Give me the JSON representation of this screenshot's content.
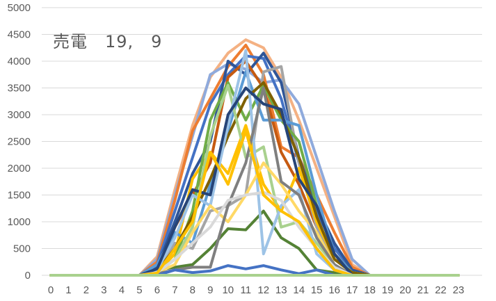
{
  "chart_data": {
    "type": "line",
    "title": "売電　19,　9",
    "xlabel": "",
    "ylabel": "",
    "x": [
      0,
      1,
      2,
      3,
      4,
      5,
      6,
      7,
      8,
      9,
      10,
      11,
      12,
      13,
      14,
      15,
      16,
      17,
      18,
      19,
      20,
      21,
      22,
      23
    ],
    "x_tick_labels": [
      "0",
      "1",
      "2",
      "3",
      "4",
      "5",
      "6",
      "7",
      "8",
      "9",
      "10",
      "11",
      "12",
      "13",
      "14",
      "15",
      "16",
      "17",
      "18",
      "19",
      "20",
      "21",
      "22",
      "23"
    ],
    "ylim": [
      0,
      5000
    ],
    "y_ticks": [
      0,
      500,
      1000,
      1500,
      2000,
      2500,
      3000,
      3500,
      4000,
      4500,
      5000
    ],
    "y_tick_labels": [
      "0",
      "500",
      "1000",
      "1500",
      "2000",
      "2500",
      "3000",
      "3500",
      "4000",
      "4500",
      "5000"
    ],
    "grid": true,
    "legend": "none",
    "series": [
      {
        "color": "#f4b183",
        "values": [
          0,
          0,
          0,
          0,
          0,
          0,
          350,
          1600,
          2800,
          3700,
          4150,
          4400,
          4250,
          3700,
          2900,
          2000,
          1100,
          200,
          0,
          0,
          0,
          0,
          0,
          0
        ]
      },
      {
        "color": "#8faadc",
        "values": [
          0,
          0,
          0,
          0,
          0,
          0,
          300,
          1500,
          2600,
          3750,
          3950,
          3850,
          3600,
          3650,
          3200,
          2200,
          1200,
          300,
          0,
          0,
          0,
          0,
          0,
          0
        ]
      },
      {
        "color": "#ed7d31",
        "values": [
          0,
          0,
          0,
          0,
          0,
          0,
          250,
          1400,
          2700,
          3300,
          3900,
          4300,
          3750,
          2400,
          2200,
          1500,
          800,
          150,
          0,
          0,
          0,
          0,
          0,
          0
        ]
      },
      {
        "color": "#4472c4",
        "values": [
          0,
          0,
          0,
          0,
          0,
          0,
          200,
          1200,
          2200,
          3200,
          3750,
          4100,
          4050,
          3300,
          2100,
          1200,
          500,
          100,
          0,
          0,
          0,
          0,
          0,
          0
        ]
      },
      {
        "color": "#2f5597",
        "values": [
          0,
          0,
          0,
          0,
          0,
          0,
          150,
          1000,
          1900,
          2500,
          4000,
          3750,
          4150,
          3600,
          2200,
          1300,
          600,
          100,
          0,
          0,
          0,
          0,
          0,
          0
        ]
      },
      {
        "color": "#c55a11",
        "values": [
          0,
          0,
          0,
          0,
          0,
          0,
          100,
          900,
          1500,
          2100,
          3700,
          4000,
          3500,
          2300,
          1700,
          900,
          400,
          50,
          0,
          0,
          0,
          0,
          0,
          0
        ]
      },
      {
        "color": "#a5a5a5",
        "values": [
          0,
          0,
          0,
          0,
          0,
          0,
          80,
          600,
          500,
          1200,
          1300,
          1500,
          3800,
          3900,
          2100,
          900,
          300,
          50,
          0,
          0,
          0,
          0,
          0,
          0
        ]
      },
      {
        "color": "#ffc000",
        "values": [
          0,
          0,
          0,
          0,
          0,
          0,
          60,
          400,
          1800,
          2300,
          1900,
          2800,
          1700,
          1200,
          2000,
          1000,
          300,
          50,
          0,
          0,
          0,
          0,
          0,
          0
        ]
      },
      {
        "color": "#70ad47",
        "values": [
          0,
          0,
          0,
          0,
          0,
          0,
          50,
          300,
          1200,
          2900,
          3600,
          2900,
          3550,
          2900,
          2500,
          1300,
          400,
          50,
          0,
          0,
          0,
          0,
          0,
          0
        ]
      },
      {
        "color": "#5b9bd5",
        "values": [
          0,
          0,
          0,
          0,
          0,
          0,
          200,
          800,
          600,
          1700,
          2700,
          3800,
          2900,
          2900,
          2800,
          1500,
          400,
          50,
          0,
          0,
          0,
          0,
          0,
          0
        ]
      },
      {
        "color": "#548235",
        "values": [
          0,
          0,
          0,
          0,
          0,
          0,
          100,
          150,
          200,
          500,
          870,
          850,
          1200,
          700,
          500,
          100,
          50,
          0,
          0,
          0,
          0,
          0,
          0,
          0
        ]
      },
      {
        "color": "#7f6000",
        "values": [
          0,
          0,
          0,
          0,
          0,
          0,
          80,
          500,
          1100,
          1800,
          2600,
          3300,
          3600,
          3000,
          2200,
          1100,
          300,
          50,
          0,
          0,
          0,
          0,
          0,
          0
        ]
      },
      {
        "color": "#a9d18e",
        "values": [
          0,
          0,
          0,
          0,
          0,
          0,
          60,
          300,
          900,
          2600,
          3550,
          2200,
          2400,
          900,
          1000,
          600,
          200,
          0,
          0,
          0,
          0,
          0,
          0,
          0
        ]
      },
      {
        "color": "#9dc3e6",
        "values": [
          0,
          0,
          0,
          0,
          0,
          0,
          100,
          700,
          1500,
          1300,
          2800,
          4200,
          400,
          1300,
          1600,
          400,
          100,
          0,
          0,
          0,
          0,
          0,
          0,
          0
        ]
      },
      {
        "color": "#ffd966",
        "values": [
          0,
          0,
          0,
          0,
          0,
          0,
          50,
          200,
          800,
          1300,
          1000,
          1500,
          2100,
          1700,
          1200,
          800,
          200,
          0,
          0,
          0,
          0,
          0,
          0,
          0
        ]
      },
      {
        "color": "#7f7f7f",
        "values": [
          0,
          0,
          0,
          0,
          0,
          0,
          30,
          100,
          150,
          150,
          1300,
          2100,
          3500,
          1750,
          1500,
          700,
          200,
          0,
          0,
          0,
          0,
          0,
          0,
          0
        ]
      },
      {
        "color": "#264478",
        "values": [
          0,
          0,
          0,
          0,
          0,
          0,
          120,
          900,
          1600,
          1500,
          3000,
          3500,
          3200,
          3100,
          1800,
          1300,
          400,
          0,
          0,
          0,
          0,
          0,
          0,
          0
        ]
      },
      {
        "color": "#4472c4",
        "values": [
          0,
          0,
          0,
          0,
          0,
          0,
          0,
          100,
          50,
          80,
          180,
          120,
          180,
          100,
          30,
          100,
          0,
          0,
          0,
          0,
          0,
          0,
          0,
          0
        ]
      },
      {
        "color": "#d9d9d9",
        "values": [
          0,
          0,
          0,
          0,
          0,
          0,
          50,
          300,
          600,
          900,
          1400,
          1500,
          1550,
          1400,
          900,
          500,
          150,
          0,
          0,
          0,
          0,
          0,
          0,
          0
        ]
      },
      {
        "color": "#ffc000",
        "values": [
          0,
          0,
          0,
          0,
          0,
          0,
          40,
          500,
          1000,
          2300,
          1700,
          2700,
          1500,
          1200,
          1000,
          500,
          100,
          0,
          0,
          0,
          0,
          0,
          0,
          0
        ]
      },
      {
        "color": "#a9d18e",
        "values": [
          0,
          0,
          0,
          0,
          0,
          0,
          0,
          0,
          0,
          0,
          0,
          0,
          0,
          0,
          0,
          0,
          0,
          0,
          0,
          0,
          0,
          0,
          0,
          0
        ]
      }
    ]
  }
}
